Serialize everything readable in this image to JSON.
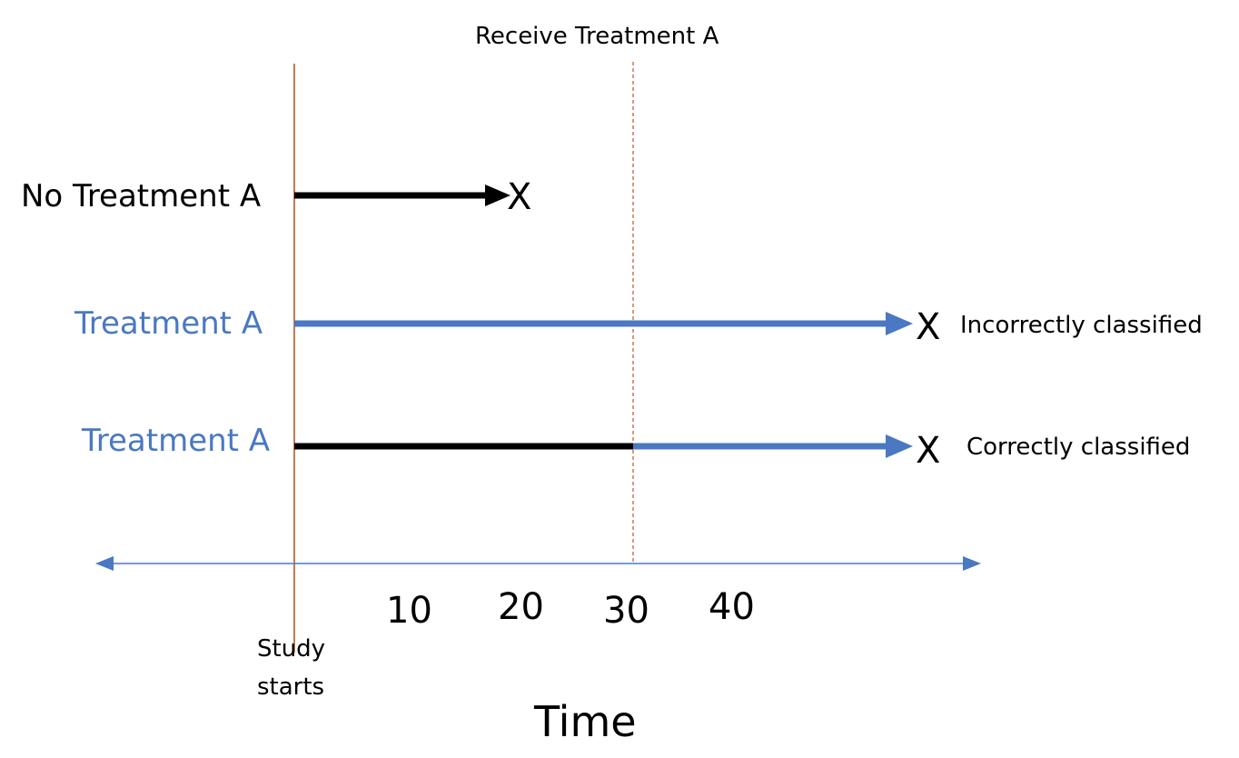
{
  "colors": {
    "black": "#000000",
    "blue": "#4a78c2",
    "start_line": "#c87a50",
    "axis": "#4a78c2"
  },
  "top_label": "Receive Treatment A",
  "rows": [
    {
      "label": "No Treatment A",
      "label_color": "#000000",
      "end_mark": "X",
      "note": ""
    },
    {
      "label": "Treatment A",
      "label_color": "#4a78c2",
      "end_mark": "X",
      "note": "Incorrectly classified"
    },
    {
      "label": "Treatment A",
      "label_color": "#4a78c2",
      "end_mark": "X",
      "note": "Correctly classified"
    }
  ],
  "axis": {
    "ticks": [
      "10",
      "20",
      "30",
      "40"
    ],
    "start_label_line1": "Study",
    "start_label_line2": "starts",
    "title": "Time"
  }
}
